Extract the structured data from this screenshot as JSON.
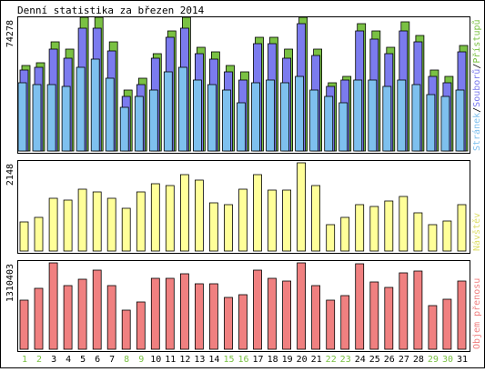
{
  "chart_data": {
    "type": "bar",
    "title": "Denní statistika za březen 2014",
    "colors": {
      "hits": "#7ac143",
      "files": "#7b7bee",
      "pages": "#7ec0ee",
      "visits": "#ffff99",
      "kbytes": "#f08080",
      "weekend_day_label": "#7ac143",
      "weekday_label": "#000000",
      "legend_hits": "#7ac143",
      "legend_files": "#7b7bee",
      "legend_pages": "#7ec0ee",
      "legend_visits": "#dddd66",
      "legend_kbytes": "#f08080"
    },
    "days": [
      "1",
      "2",
      "3",
      "4",
      "5",
      "6",
      "7",
      "8",
      "9",
      "10",
      "11",
      "12",
      "13",
      "14",
      "15",
      "16",
      "17",
      "18",
      "19",
      "20",
      "21",
      "22",
      "23",
      "24",
      "25",
      "26",
      "27",
      "28",
      "29",
      "30",
      "31"
    ],
    "weekend_days": [
      "1",
      "2",
      "8",
      "9",
      "15",
      "16",
      "22",
      "23",
      "29",
      "30"
    ],
    "panels": [
      {
        "name": "traffic",
        "ymax_label": "74278",
        "ymax": 74278,
        "legend": [
          {
            "text": "Stránek",
            "color_key": "legend_pages"
          },
          {
            "text": "/",
            "color_key": "weekday_label"
          },
          {
            "text": "Souborů",
            "color_key": "legend_files"
          },
          {
            "text": "/",
            "color_key": "weekday_label"
          },
          {
            "text": "Přístupů",
            "color_key": "legend_hits"
          }
        ],
        "series": [
          {
            "name": "Přístupů",
            "color_key": "hits",
            "values": [
              48300,
              49500,
              61700,
              57300,
              75200,
              75200,
              61700,
              34300,
              41000,
              54900,
              67400,
              75200,
              58500,
              55600,
              48000,
              44700,
              64000,
              64000,
              57300,
              75200,
              57300,
              38400,
              42000,
              71800,
              67400,
              58500,
              72900,
              65100,
              45700,
              42000,
              59600
            ]
          },
          {
            "name": "Souborů",
            "color_key": "files",
            "values": [
              45700,
              47000,
              57300,
              52500,
              69000,
              69000,
              56200,
              30800,
              37300,
              52500,
              64000,
              69000,
              54900,
              51700,
              44700,
              40000,
              60700,
              60700,
              52500,
              71800,
              53700,
              36200,
              40000,
              67400,
              63000,
              54900,
              67400,
              61700,
              42000,
              38400,
              55600
            ]
          },
          {
            "name": "Stránek",
            "color_key": "pages",
            "values": [
              38400,
              37300,
              37300,
              36200,
              47000,
              51700,
              41000,
              24500,
              30800,
              34300,
              44700,
              47000,
              40000,
              37300,
              34300,
              27400,
              38400,
              40000,
              38400,
              42000,
              34300,
              30800,
              27400,
              40000,
              40000,
              36200,
              40000,
              37300,
              31900,
              30800,
              34300
            ]
          }
        ]
      },
      {
        "name": "visits",
        "ymax_label": "2148",
        "ymax": 2148,
        "legend": [
          {
            "text": "Návštěv",
            "color_key": "legend_visits"
          }
        ],
        "series": [
          {
            "name": "Návštěv",
            "color_key": "visits",
            "values": [
              705,
              820,
              1280,
              1230,
              1495,
              1430,
              1290,
              1050,
              1440,
              1640,
              1590,
              1850,
              1720,
              1175,
              1120,
              1495,
              1850,
              1475,
              1475,
              2148,
              1590,
              645,
              820,
              1125,
              1075,
              1220,
              1330,
              930,
              645,
              720,
              1125
            ]
          }
        ]
      },
      {
        "name": "kbytes",
        "ymax_label": "1310403",
        "ymax": 1310403,
        "legend": [
          {
            "text": "Objem přenosu",
            "color_key": "legend_kbytes"
          }
        ],
        "series": [
          {
            "name": "Objem přenosu",
            "color_key": "kbytes",
            "values": [
              750000,
              920000,
              1310403,
              960000,
              1060000,
              1200000,
              960000,
              600000,
              720000,
              1080000,
              1070000,
              1140000,
              990000,
              1000000,
              780000,
              830000,
              1200000,
              1080000,
              1040000,
              1310403,
              960000,
              740000,
              810000,
              1290000,
              1020000,
              940000,
              1160000,
              1180000,
              660000,
              760000,
              1040000
            ]
          }
        ]
      }
    ]
  }
}
